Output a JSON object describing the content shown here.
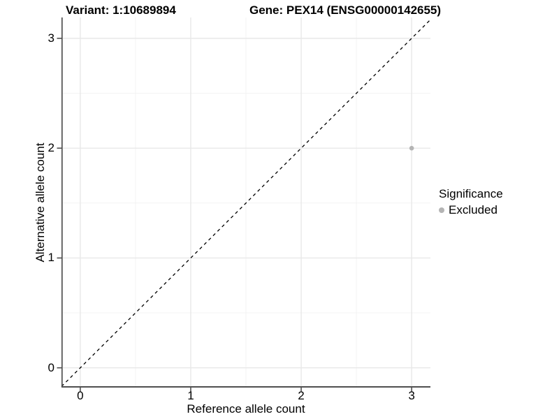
{
  "chart_data": {
    "type": "scatter",
    "titles": {
      "left": "Variant: 1:10689894",
      "right": "Gene: PEX14 (ENSG00000142655)"
    },
    "xlabel": "Reference allele count",
    "ylabel": "Alternative allele count",
    "xlim": [
      -0.17,
      3.17
    ],
    "ylim": [
      -0.18,
      3.19
    ],
    "xticks": [
      0,
      1,
      2,
      3
    ],
    "yticks": [
      0,
      1,
      2,
      3
    ],
    "xminor": [
      0.5,
      1.5,
      2.5
    ],
    "yminor": [
      0.5,
      1.5,
      2.5
    ],
    "grid": "major and minor gridlines on white background",
    "series": [
      {
        "name": "Excluded",
        "color": "#b4b4b4",
        "points": [
          {
            "x": 3,
            "y": 2
          }
        ]
      }
    ],
    "reference_line": {
      "equation": "y = x",
      "style": "dashed",
      "color": "#000000"
    },
    "legend": {
      "title": "Significance",
      "position": "right",
      "entries": [
        {
          "label": "Excluded",
          "color": "#b4b4b4"
        }
      ]
    }
  },
  "colors": {
    "background": "#ffffff",
    "grid_major": "#e8e8e8",
    "grid_minor": "#f3f3f3",
    "axis_line": "#4f4f4f",
    "text": "#000000"
  }
}
